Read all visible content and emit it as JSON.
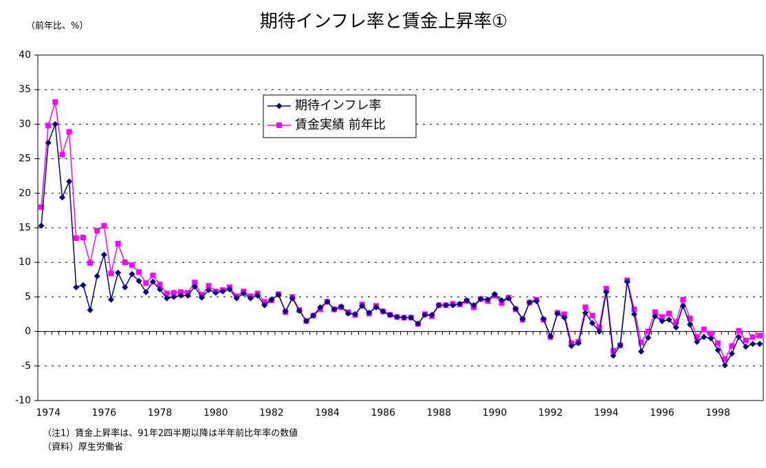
{
  "chart_data": {
    "type": "line",
    "title": "期待インフレ率と賃金上昇率①",
    "y_label": "（前年比、%）",
    "notes": [
      "（注1）賃金上昇率は、91年2四半期以降は半年前比年率の数値",
      "（資料）厚生労働省"
    ],
    "categories": [
      "1974",
      null,
      null,
      null,
      null,
      null,
      null,
      null,
      "1976",
      null,
      null,
      null,
      null,
      null,
      null,
      null,
      "1978",
      null,
      null,
      null,
      null,
      null,
      null,
      null,
      "1980",
      null,
      null,
      null,
      null,
      null,
      null,
      null,
      "1982",
      null,
      null,
      null,
      null,
      null,
      null,
      null,
      "1984",
      null,
      null,
      null,
      null,
      null,
      null,
      null,
      "1986",
      null,
      null,
      null,
      null,
      null,
      null,
      null,
      "1988",
      null,
      null,
      null,
      null,
      null,
      null,
      null,
      "1990",
      null,
      null,
      null,
      null,
      null,
      null,
      null,
      "1992",
      null,
      null,
      null,
      null,
      null,
      null,
      null,
      "1994",
      null,
      null,
      null,
      null,
      null,
      null,
      null,
      "1996",
      null,
      null,
      null,
      null,
      null,
      null,
      null,
      "1998",
      null,
      null,
      null,
      null,
      null,
      null,
      null
    ],
    "series": [
      {
        "name": "期待インフレ率",
        "color": "#000080",
        "marker": "diamond",
        "values": [
          15.3,
          27.3,
          30,
          19.4,
          21.7,
          6.4,
          6.7,
          3.1,
          8,
          11.1,
          4.6,
          8.5,
          6.4,
          8.3,
          7.3,
          5.7,
          7.2,
          6.1,
          4.8,
          5,
          5.2,
          5.2,
          6.5,
          4.9,
          6,
          5.6,
          5.8,
          6.1,
          4.8,
          5.5,
          4.8,
          5.2,
          3.8,
          4.6,
          5.3,
          2.9,
          4.8,
          3,
          1.5,
          2.3,
          3.5,
          4.3,
          3.2,
          3.6,
          2.6,
          2.5,
          3.7,
          2.7,
          3.5,
          2.9,
          2.4,
          2.1,
          2,
          2,
          1.1,
          2.4,
          2.4,
          3.8,
          3.8,
          3.8,
          4,
          4.5,
          3.8,
          4.7,
          4.6,
          5.4,
          4.5,
          4.8,
          3.3,
          1.8,
          4.2,
          4.4,
          1.8,
          -0.7,
          2.6,
          2,
          -2.1,
          -1.7,
          2.7,
          1.2,
          0,
          5.7,
          -3.5,
          -2,
          7.2,
          2.5,
          -2.9,
          -0.9,
          2.2,
          1.5,
          1.7,
          0.6,
          3.7,
          1,
          -1.5,
          -0.8,
          -1,
          -2.7,
          -4.9,
          -3.2,
          -0.8,
          -2.2,
          -1.8,
          -1.8
        ]
      },
      {
        "name": "賃金実績 前年比",
        "color": "#ff00ff",
        "marker": "square",
        "values": [
          18,
          29.8,
          33.2,
          25.6,
          28.9,
          13.5,
          13.6,
          9.9,
          14.6,
          15.3,
          8.4,
          12.7,
          10,
          9.6,
          8.6,
          7,
          8.1,
          6.8,
          5.5,
          5.6,
          5.7,
          5.6,
          7.1,
          5.3,
          6.6,
          5.8,
          6,
          6.4,
          5.1,
          5.8,
          5.1,
          5.5,
          4.3,
          4.5,
          5.4,
          2.8,
          5,
          3.1,
          1.5,
          2.3,
          3.2,
          4.3,
          3.2,
          3.5,
          2.8,
          2.4,
          3.9,
          2.6,
          3.7,
          2.9,
          2.4,
          2.1,
          2,
          2,
          1.1,
          2.5,
          2.2,
          3.8,
          3.8,
          4,
          3.9,
          4.4,
          3.5,
          4.7,
          4.4,
          5.2,
          4.1,
          4.9,
          3.2,
          1.7,
          4.2,
          4.6,
          1.7,
          -0.8,
          2.7,
          2.5,
          -1.7,
          -1.5,
          3.5,
          2.3,
          0.6,
          6.2,
          -2.8,
          -2,
          7.4,
          3.2,
          -1.6,
          0,
          2.8,
          2.1,
          2.6,
          1.4,
          4.6,
          1.9,
          -0.8,
          0.3,
          -0.3,
          -1.7,
          -4,
          -2.1,
          0.1,
          -1.3,
          -0.8,
          -0.6
        ]
      }
    ],
    "ylim": [
      -10,
      40
    ],
    "yticks": [
      -10,
      -5,
      0,
      5,
      10,
      15,
      20,
      25,
      30,
      35,
      40
    ],
    "grid": true,
    "legend": "top-center"
  }
}
